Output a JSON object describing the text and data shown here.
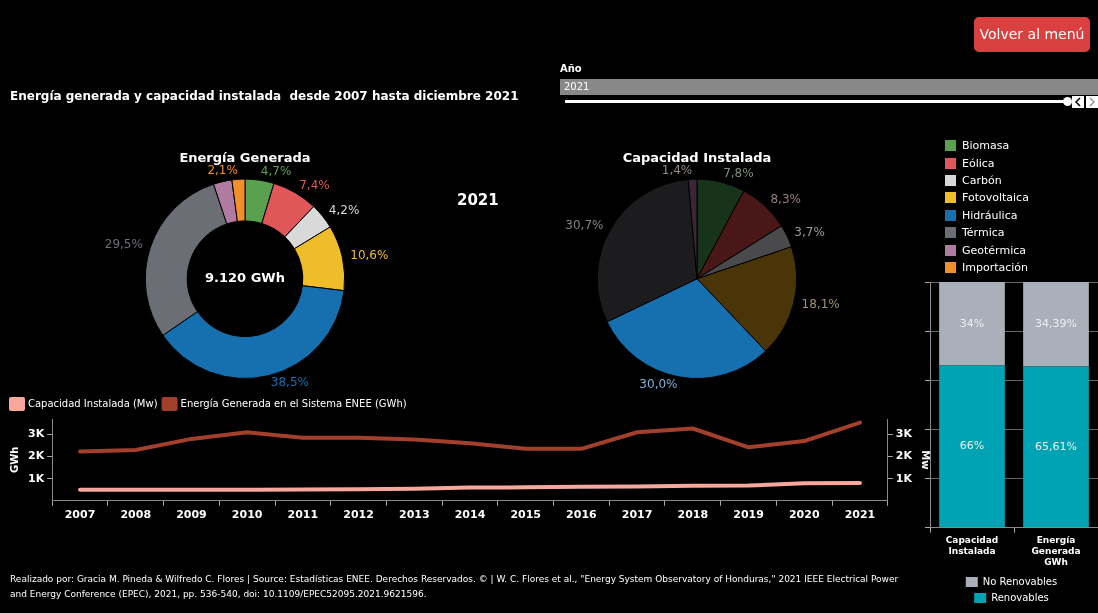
{
  "chart_data": [
    {
      "type": "donut",
      "title": "Energía Generada",
      "categories": [
        "Biomasa",
        "Eólica",
        "Carbón",
        "Fotovoltaica",
        "Hidráulica",
        "Térmica",
        "Geotérmica",
        "Importación"
      ],
      "values": [
        4.7,
        7.4,
        4.2,
        10.6,
        38.5,
        29.5,
        3.0,
        2.1
      ],
      "colors": [
        "#59a14f",
        "#e15759",
        "#d9d9d9",
        "#f0bd2a",
        "#1670b0",
        "#6b6e75",
        "#b07aa1",
        "#f28e2b"
      ],
      "value_labels": [
        "4,7%",
        "7,4%",
        "4,2%",
        "10,6%",
        "38,5%",
        "29,5%",
        null,
        "2,1%"
      ],
      "annotations": [
        "9.120 GWh"
      ],
      "legend": "right"
    },
    {
      "type": "pie",
      "title": "Capacidad Instalada",
      "values": [
        7.8,
        8.3,
        3.7,
        18.1,
        30.0,
        30.7,
        1.4,
        null
      ],
      "colors": [
        "#173319",
        "#4a1718",
        "#4a4a4c",
        "#4a3508",
        "#1670b0",
        "#1c1c1f",
        "#3a2638",
        "#5a3410"
      ],
      "value_labels": [
        "7,8%",
        "8,3%",
        "3,7%",
        "18,1%",
        "30,0%",
        "30,7%",
        "1,4%",
        null
      ],
      "annotations": [
        "2021"
      ]
    },
    {
      "type": "line",
      "categories": [
        "2007",
        "2008",
        "2009",
        "2010",
        "2011",
        "2012",
        "2013",
        "2014",
        "2015",
        "2016",
        "2017",
        "2018",
        "2019",
        "2020",
        "2021"
      ],
      "series": [
        {
          "name": "Capacidad Instalada (Mw)",
          "color": "#f7a79c",
          "values": [
            500,
            500,
            500,
            500,
            510,
            520,
            540,
            600,
            610,
            640,
            650,
            680,
            690,
            790,
            800
          ]
        },
        {
          "name": "Energía Generada en el Sistema ENEE (GWh)",
          "color": "#a3402b",
          "values": [
            2230,
            2300,
            2800,
            3100,
            2850,
            2850,
            2770,
            2600,
            2350,
            2350,
            3100,
            3270,
            2420,
            2700,
            3540
          ]
        }
      ],
      "ylabel": "GWh",
      "y2label": "Mw",
      "ylim": [
        0,
        3700
      ],
      "yticks": [
        {
          "value": 1000,
          "label": "1K"
        },
        {
          "value": 2000,
          "label": "2K"
        },
        {
          "value": 3000,
          "label": "3K"
        }
      ],
      "y2lim": [
        0,
        3700
      ],
      "y2ticks": [
        {
          "value": 1000,
          "label": "1K"
        },
        {
          "value": 2000,
          "label": "2K"
        },
        {
          "value": 3000,
          "label": "3K"
        }
      ],
      "legend": "top left"
    },
    {
      "type": "bar",
      "stacked": true,
      "categories": [
        "Capacidad Instalada",
        "Energía Generada GWh"
      ],
      "series": [
        {
          "name": "Renovables",
          "color": "#00a3b4",
          "values": [
            66,
            65.61
          ],
          "value_labels": [
            "66%",
            "65,61%"
          ]
        },
        {
          "name": "No Renovables",
          "color": "#a9b0ba",
          "values": [
            34,
            34.39
          ],
          "value_labels": [
            "34%",
            "34,39%"
          ]
        }
      ],
      "ylim": [
        0,
        100
      ],
      "yticks": [
        {
          "value": 0,
          "label": null
        },
        {
          "value": 20,
          "label": null
        },
        {
          "value": 40,
          "label": null
        },
        {
          "value": 60,
          "label": null
        },
        {
          "value": 80,
          "label": null
        },
        {
          "value": 100,
          "label": null
        }
      ],
      "tick_labels": "x",
      "grid": "y",
      "legend": "bottom"
    },
    {
      "type": "other",
      "title": "Energía generada y capacidad instalada  desde 2007 hasta diciembre 2021",
      "annotations": [
        "Año",
        "2021",
        "Volver al menú",
        "Realizado por: Gracia M. Pineda & Wilfredo C. Flores | Source: Estadísticas ENEE.  Derechos Reservados. ©  | W. C. Flores et al., \"Energy System Observatory of Honduras,\" 2021 IEEE Electrical Power and Energy Conference (EPEC), 2021, pp. 536-540, doi: 10.1109/EPEC52095.2021.9621596."
      ]
    }
  ]
}
